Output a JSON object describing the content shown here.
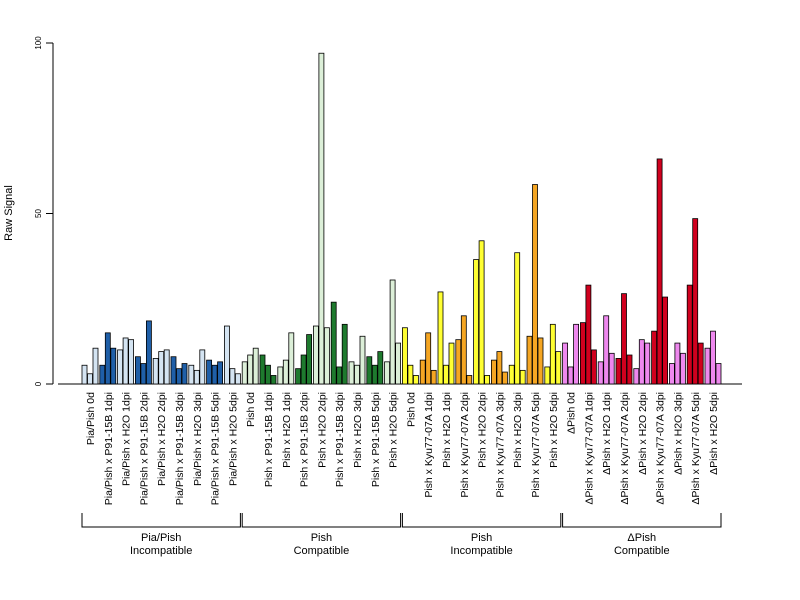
{
  "chart_data": {
    "type": "bar",
    "title": "",
    "xlabel": "",
    "ylabel": "Raw Signal",
    "ylim": [
      0,
      100
    ],
    "yticks": [
      0,
      50,
      100
    ],
    "grid": false,
    "categories": [
      "Pia/Pish 0d",
      "Pia/Pish x P91-15B 1dpi",
      "Pia/Pish x H2O 1dpi",
      "Pia/Pish x P91-15B 2dpi",
      "Pia/Pish x H2O 2dpi",
      "Pia/Pish x P91-15B 3dpi",
      "Pia/Pish x H2O 3dpi",
      "Pia/Pish x P91-15B 5dpi",
      "Pia/Pish x H2O 5dpi",
      "Pish 0d",
      "Pish x P91-15B 1dpi",
      "Pish x H2O 1dpi",
      "Pish x P91-15B 2dpi",
      "Pish x H2O 2dpi",
      "Pish x P91-15B 3dpi",
      "Pish x H2O 3dpi",
      "Pish x P91-15B 5dpi",
      "Pish x H2O 5dpi",
      "Pish 0d",
      "Pish x Kyu77-07A 1dpi",
      "Pish x H2O 1dpi",
      "Pish x Kyu77-07A 2dpi",
      "Pish x H2O 2dpi",
      "Pish x Kyu77-07A 3dpi",
      "Pish x H2O 3dpi",
      "Pish x Kyu77-07A 5dpi",
      "Pish x H2O 5dpi",
      "ΔPish 0d",
      "ΔPish x Kyu77-07A 1dpi",
      "ΔPish x H2O 1dpi",
      "ΔPish x Kyu77-07A 2dpi",
      "ΔPish x H2O 2dpi",
      "ΔPish x Kyu77-07A 3dpi",
      "ΔPish x H2O 3dpi",
      "ΔPish x Kyu77-07A 5dpi",
      "ΔPish x H2O 5dpi"
    ],
    "replicates": [
      [
        5.5,
        3,
        10.5
      ],
      [
        5.5,
        15,
        10.5
      ],
      [
        10,
        13.5,
        13
      ],
      [
        8,
        6,
        18.5
      ],
      [
        7.5,
        9.5,
        10
      ],
      [
        8,
        4.5,
        6
      ],
      [
        5.5,
        4,
        10
      ],
      [
        7,
        5.5,
        6.5
      ],
      [
        17,
        4.5,
        3
      ],
      [
        6.5,
        8.5,
        10.5
      ],
      [
        8.5,
        5.5,
        2.5
      ],
      [
        5,
        7,
        15
      ],
      [
        4.5,
        8.5,
        14.5
      ],
      [
        17,
        97,
        16.5
      ],
      [
        24,
        5,
        17.5
      ],
      [
        6.5,
        5.5,
        14
      ],
      [
        8,
        5.5,
        9.5
      ],
      [
        6.5,
        30.5,
        12
      ],
      [
        16.5,
        5.5,
        2.5
      ],
      [
        7,
        15,
        4
      ],
      [
        27,
        5.5,
        12
      ],
      [
        13,
        20,
        2.5
      ],
      [
        36.5,
        42,
        2.5
      ],
      [
        7,
        9.5,
        3.5
      ],
      [
        5.5,
        38.5,
        4
      ],
      [
        14,
        58.5,
        13.5
      ],
      [
        5,
        17.5,
        9.5
      ],
      [
        12,
        5,
        17.5
      ],
      [
        18,
        29,
        10
      ],
      [
        6.5,
        20,
        9
      ],
      [
        7.5,
        26.5,
        8.5
      ],
      [
        4.5,
        13,
        12
      ],
      [
        15.5,
        66,
        25.5
      ],
      [
        6,
        12,
        9
      ],
      [
        29,
        48.5,
        12
      ],
      [
        10.5,
        15.5,
        6
      ]
    ],
    "colors": [
      "#d4e4f2",
      "#1f5fa8",
      "#d4e4f2",
      "#1f5fa8",
      "#d4e4f2",
      "#1f5fa8",
      "#d4e4f2",
      "#1f5fa8",
      "#d4e4f2",
      "#dcefd8",
      "#1e7a2e",
      "#dcefd8",
      "#1e7a2e",
      "#dcefd8",
      "#1e7a2e",
      "#dcefd8",
      "#1e7a2e",
      "#dcefd8",
      "#ffff33",
      "#f5a623",
      "#ffff33",
      "#f5a623",
      "#ffff33",
      "#f5a623",
      "#ffff33",
      "#f5a623",
      "#ffff33",
      "#ee88ee",
      "#d0001e",
      "#ee88ee",
      "#d0001e",
      "#ee88ee",
      "#d0001e",
      "#ee88ee",
      "#d0001e",
      "#ee88ee"
    ],
    "groups": [
      {
        "line1": "Pia/Pish",
        "line2": "Incompatible",
        "start": 0,
        "end": 8
      },
      {
        "line1": "Pish",
        "line2": "Compatible",
        "start": 9,
        "end": 17
      },
      {
        "line1": "Pish",
        "line2": "Incompatible",
        "start": 18,
        "end": 26
      },
      {
        "line1": "ΔPish",
        "line2": "Compatible",
        "start": 27,
        "end": 35
      }
    ]
  }
}
